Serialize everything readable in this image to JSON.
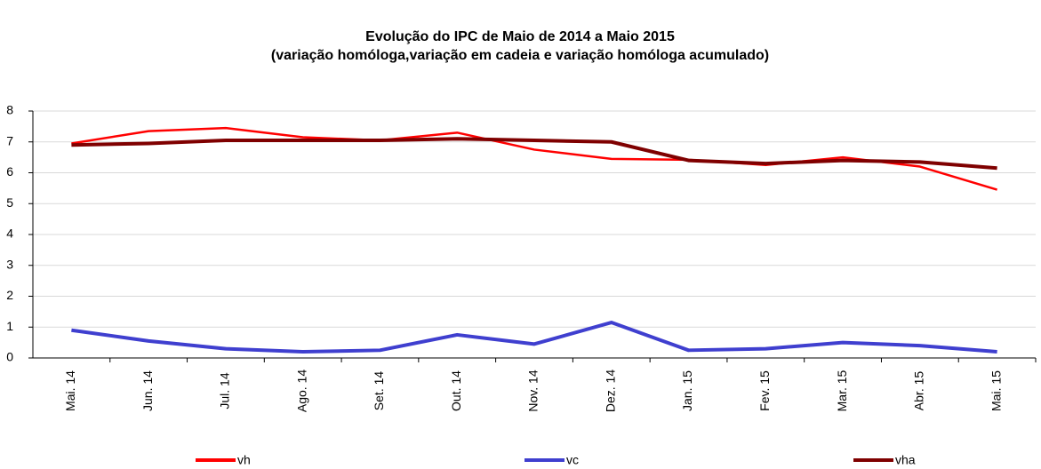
{
  "chart_data": {
    "type": "line",
    "title": "Evolução do IPC de Maio de 2014 a Maio 2015",
    "subtitle": "(variação homóloga,variação em cadeia e variação homóloga acumulado)",
    "categories": [
      "Mai. 14",
      "Jun. 14",
      "Jul. 14",
      "Ago. 14",
      "Set. 14",
      "Out. 14",
      "Nov. 14",
      "Dez. 14",
      "Jan. 15",
      "Fev. 15",
      "Mar. 15",
      "Abr. 15",
      "Mai. 15"
    ],
    "series": [
      {
        "name": "vh",
        "color": "#ff0000",
        "values": [
          6.95,
          7.35,
          7.45,
          7.15,
          7.05,
          7.3,
          6.75,
          6.45,
          6.42,
          6.25,
          6.5,
          6.2,
          5.45
        ]
      },
      {
        "name": "vc",
        "color": "#3f3fcf",
        "values": [
          0.9,
          0.55,
          0.3,
          0.2,
          0.25,
          0.75,
          0.45,
          1.15,
          0.25,
          0.3,
          0.5,
          0.4,
          0.2
        ]
      },
      {
        "name": "vha",
        "color": "#7f0000",
        "values": [
          6.9,
          6.95,
          7.05,
          7.05,
          7.05,
          7.1,
          7.05,
          7.0,
          6.4,
          6.3,
          6.4,
          6.35,
          6.15
        ]
      }
    ],
    "ylim": [
      0,
      8
    ],
    "yticks": [
      0,
      1,
      2,
      3,
      4,
      5,
      6,
      7,
      8
    ],
    "grid": true,
    "legend": "bottom"
  }
}
